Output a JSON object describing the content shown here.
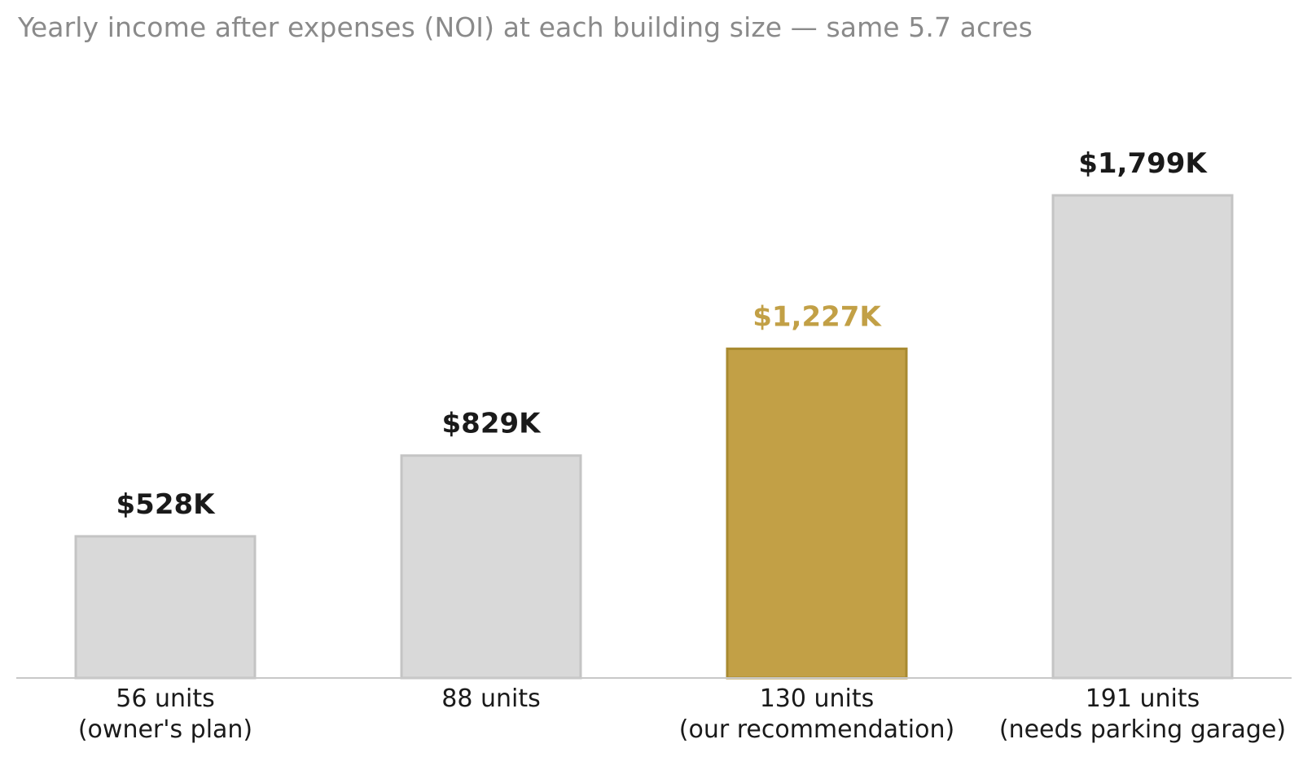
{
  "chart_data": {
    "type": "bar",
    "title": "Yearly income after expenses (NOI) at each building size — same 5.7 acres",
    "categories": [
      [
        "56 units",
        "(owner's plan)"
      ],
      [
        "88 units"
      ],
      [
        "130 units",
        "(our recommendation)"
      ],
      [
        "191 units",
        "(needs parking garage)"
      ]
    ],
    "values": [
      528,
      829,
      1227,
      1799
    ],
    "value_labels": [
      "$528K",
      "$829K",
      "$1,227K",
      "$1,799K"
    ],
    "unit": "$K",
    "highlight_index": 2,
    "ylim": [
      0,
      1900
    ],
    "grid": false,
    "legend": "none",
    "colors": {
      "bar": "#d9d9d9",
      "bar_stroke": "#c4c4c4",
      "highlight": "#c2a046",
      "highlight_stroke": "#a88a30",
      "value_text": "#1a1a1a",
      "highlight_text": "#c2a046",
      "axis": "#c8c8c8"
    }
  }
}
